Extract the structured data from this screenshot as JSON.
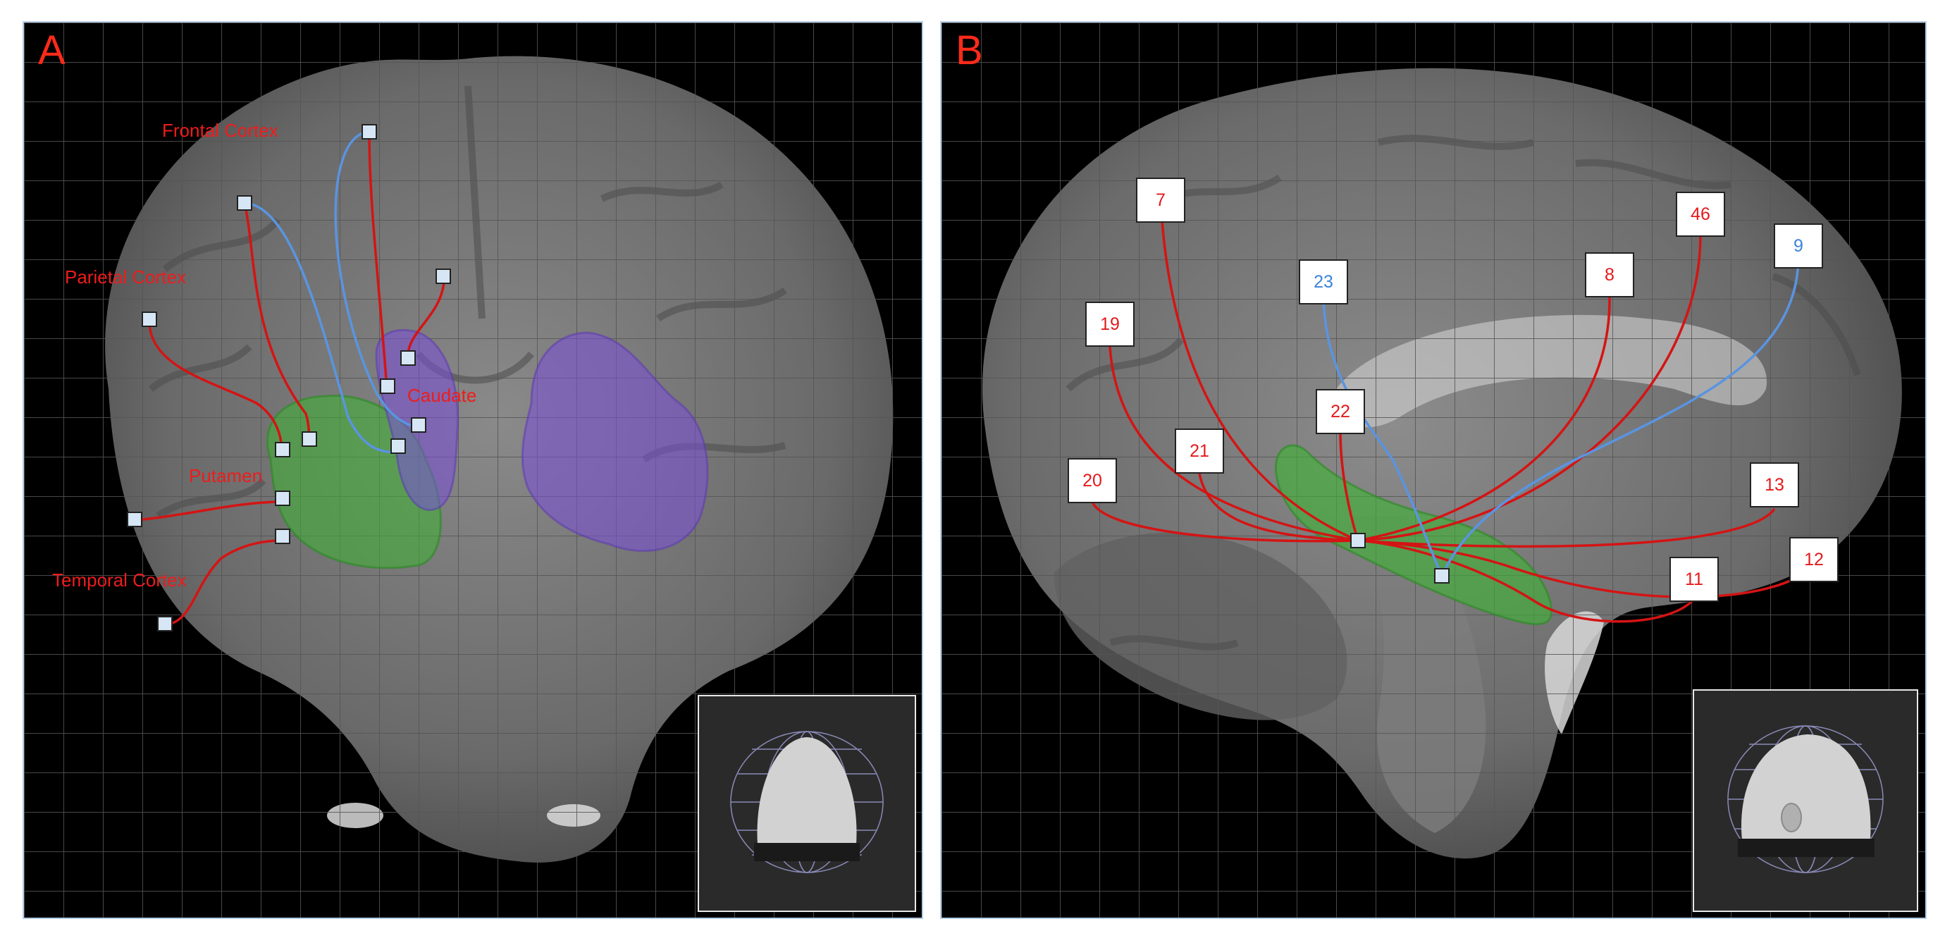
{
  "panels": {
    "a": {
      "letter": "A",
      "labels": {
        "frontal": "Frontal Cortex",
        "parietal": "Parietal Cortex",
        "caudate": "Caudate",
        "putamen": "Putamen",
        "temporal": "Temporal Cortex"
      }
    },
    "b": {
      "letter": "B",
      "areas": [
        {
          "label": "7",
          "color": "red"
        },
        {
          "label": "19",
          "color": "red"
        },
        {
          "label": "20",
          "color": "red"
        },
        {
          "label": "21",
          "color": "red"
        },
        {
          "label": "22",
          "color": "red"
        },
        {
          "label": "23",
          "color": "blue"
        },
        {
          "label": "8",
          "color": "red"
        },
        {
          "label": "46",
          "color": "red"
        },
        {
          "label": "9",
          "color": "blue"
        },
        {
          "label": "13",
          "color": "red"
        },
        {
          "label": "11",
          "color": "red"
        },
        {
          "label": "12",
          "color": "red"
        }
      ]
    }
  },
  "colors": {
    "red_connection": "#d41414",
    "blue_connection": "#5a94e0",
    "putamen": "#3cb432",
    "caudate": "#7a4ed8",
    "node_fill": "#d6e6f5",
    "frame": "#b7cfe8"
  }
}
